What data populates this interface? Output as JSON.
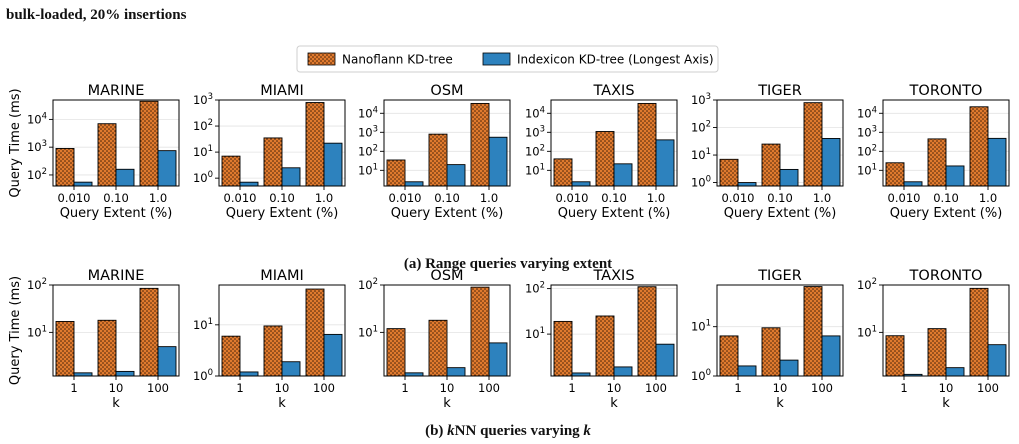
{
  "top_caption": "bulk-loaded, 20% insertions",
  "legend": {
    "series": [
      {
        "name": "Nanoflann KD-tree",
        "color": "#e07a2e",
        "pattern": "dots"
      },
      {
        "name": "Indexicon KD-tree (Longest Axis)",
        "color": "#2d82be",
        "pattern": "solid"
      }
    ]
  },
  "rows": [
    {
      "caption_label": "(a)",
      "caption_text": "Range queries varying extent",
      "ylabel": "Query Time (ms)",
      "xlabel": "Query Extent (%)"
    },
    {
      "caption_label": "(b)",
      "caption_pre": "k",
      "caption_mid": "NN queries varying",
      "caption_post": "k",
      "ylabel": "Query Time (ms)",
      "xlabel": "k"
    }
  ],
  "chart_data": [
    {
      "type": "bar",
      "row": 0,
      "title": "MARINE",
      "categories": [
        "0.010",
        "0.10",
        "1.0"
      ],
      "xlabel": "Query Extent (%)",
      "ylabel": "Query Time (ms)",
      "yscale": "log",
      "ylim": [
        40,
        50000
      ],
      "yticks": [
        {
          "v": 100,
          "e": "2"
        },
        {
          "v": 1000,
          "e": "3"
        },
        {
          "v": 10000,
          "e": "4"
        }
      ],
      "series": [
        {
          "name": "Nanoflann KD-tree",
          "values": [
            900,
            7000,
            45000
          ]
        },
        {
          "name": "Indexicon KD-tree (Longest Axis)",
          "values": [
            55,
            160,
            750
          ]
        }
      ]
    },
    {
      "type": "bar",
      "row": 0,
      "title": "MIAMI",
      "categories": [
        "0.010",
        "0.10",
        "1.0"
      ],
      "xlabel": "Query Extent (%)",
      "ylabel": "",
      "yscale": "log",
      "ylim": [
        0.5,
        1000
      ],
      "yticks": [
        {
          "v": 1,
          "e": "0"
        },
        {
          "v": 10,
          "e": "1"
        },
        {
          "v": 100,
          "e": "2"
        },
        {
          "v": 1000,
          "e": "3"
        }
      ],
      "series": [
        {
          "name": "Nanoflann KD-tree",
          "values": [
            7,
            35,
            800
          ]
        },
        {
          "name": "Indexicon KD-tree (Longest Axis)",
          "values": [
            0.7,
            2.5,
            22
          ]
        }
      ]
    },
    {
      "type": "bar",
      "row": 0,
      "title": "OSM",
      "categories": [
        "0.010",
        "0.10",
        "1.0"
      ],
      "xlabel": "Query Extent (%)",
      "ylabel": "",
      "yscale": "log",
      "ylim": [
        1.5,
        50000
      ],
      "yticks": [
        {
          "v": 10,
          "e": "1"
        },
        {
          "v": 100,
          "e": "2"
        },
        {
          "v": 1000,
          "e": "3"
        },
        {
          "v": 10000,
          "e": "4"
        }
      ],
      "series": [
        {
          "name": "Nanoflann KD-tree",
          "values": [
            35,
            800,
            33000
          ]
        },
        {
          "name": "Indexicon KD-tree (Longest Axis)",
          "values": [
            2.5,
            20,
            550
          ]
        }
      ]
    },
    {
      "type": "bar",
      "row": 0,
      "title": "TAXIS",
      "categories": [
        "0.010",
        "0.10",
        "1.0"
      ],
      "xlabel": "Query Extent (%)",
      "ylabel": "",
      "yscale": "log",
      "ylim": [
        1.5,
        50000
      ],
      "yticks": [
        {
          "v": 10,
          "e": "1"
        },
        {
          "v": 100,
          "e": "2"
        },
        {
          "v": 1000,
          "e": "3"
        },
        {
          "v": 10000,
          "e": "4"
        }
      ],
      "series": [
        {
          "name": "Nanoflann KD-tree",
          "values": [
            40,
            1100,
            33000
          ]
        },
        {
          "name": "Indexicon KD-tree (Longest Axis)",
          "values": [
            2.5,
            22,
            400
          ]
        }
      ]
    },
    {
      "type": "bar",
      "row": 0,
      "title": "TIGER",
      "categories": [
        "0.010",
        "0.10",
        "1.0"
      ],
      "xlabel": "Query Extent (%)",
      "ylabel": "",
      "yscale": "log",
      "ylim": [
        0.75,
        1000
      ],
      "yticks": [
        {
          "v": 1,
          "e": "0"
        },
        {
          "v": 10,
          "e": "1"
        },
        {
          "v": 100,
          "e": "2"
        },
        {
          "v": 1000,
          "e": "3"
        }
      ],
      "series": [
        {
          "name": "Nanoflann KD-tree",
          "values": [
            7,
            25,
            800
          ]
        },
        {
          "name": "Indexicon KD-tree (Longest Axis)",
          "values": [
            1.0,
            3.0,
            40
          ]
        }
      ]
    },
    {
      "type": "bar",
      "row": 0,
      "title": "TORONTO",
      "categories": [
        "0.010",
        "0.10",
        "1.0"
      ],
      "xlabel": "Query Extent (%)",
      "ylabel": "",
      "yscale": "log",
      "ylim": [
        1.5,
        50000
      ],
      "yticks": [
        {
          "v": 10,
          "e": "1"
        },
        {
          "v": 100,
          "e": "2"
        },
        {
          "v": 1000,
          "e": "3"
        },
        {
          "v": 10000,
          "e": "4"
        }
      ],
      "series": [
        {
          "name": "Nanoflann KD-tree",
          "values": [
            25,
            450,
            22000
          ]
        },
        {
          "name": "Indexicon KD-tree (Longest Axis)",
          "values": [
            2.5,
            17,
            480
          ]
        }
      ]
    },
    {
      "type": "bar",
      "row": 1,
      "title": "MARINE",
      "categories": [
        "1",
        "10",
        "100"
      ],
      "xlabel": "k",
      "ylabel": "Query Time (ms)",
      "yscale": "log",
      "ylim": [
        1.2,
        100
      ],
      "yticks": [
        {
          "v": 10,
          "e": "1"
        },
        {
          "v": 100,
          "e": "2"
        }
      ],
      "series": [
        {
          "name": "Nanoflann KD-tree",
          "values": [
            17,
            18,
            85
          ]
        },
        {
          "name": "Indexicon KD-tree (Longest Axis)",
          "values": [
            1.4,
            1.5,
            5
          ]
        }
      ]
    },
    {
      "type": "bar",
      "row": 1,
      "title": "MIAMI",
      "categories": [
        "1",
        "10",
        "100"
      ],
      "xlabel": "k",
      "ylabel": "",
      "yscale": "log",
      "ylim": [
        1,
        60
      ],
      "yticks": [
        {
          "v": 1,
          "e": "0"
        },
        {
          "v": 10,
          "e": "1"
        }
      ],
      "series": [
        {
          "name": "Nanoflann KD-tree",
          "values": [
            6,
            9.5,
            50
          ]
        },
        {
          "name": "Indexicon KD-tree (Longest Axis)",
          "values": [
            1.2,
            1.9,
            6.5
          ]
        }
      ]
    },
    {
      "type": "bar",
      "row": 1,
      "title": "OSM",
      "categories": [
        "1",
        "10",
        "100"
      ],
      "xlabel": "k",
      "ylabel": "",
      "yscale": "log",
      "ylim": [
        1.2,
        100
      ],
      "yticks": [
        {
          "v": 10,
          "e": "1"
        },
        {
          "v": 100,
          "e": "2"
        }
      ],
      "series": [
        {
          "name": "Nanoflann KD-tree",
          "values": [
            12,
            18,
            90
          ]
        },
        {
          "name": "Indexicon KD-tree (Longest Axis)",
          "values": [
            1.4,
            1.8,
            6
          ]
        }
      ]
    },
    {
      "type": "bar",
      "row": 1,
      "title": "TAXIS",
      "categories": [
        "1",
        "10",
        "100"
      ],
      "xlabel": "k",
      "ylabel": "",
      "yscale": "log",
      "ylim": [
        1.2,
        120
      ],
      "yticks": [
        {
          "v": 10,
          "e": "1"
        },
        {
          "v": 100,
          "e": "2"
        }
      ],
      "series": [
        {
          "name": "Nanoflann KD-tree",
          "values": [
            19,
            25,
            110
          ]
        },
        {
          "name": "Indexicon KD-tree (Longest Axis)",
          "values": [
            1.4,
            1.9,
            6
          ]
        }
      ]
    },
    {
      "type": "bar",
      "row": 1,
      "title": "TIGER",
      "categories": [
        "1",
        "10",
        "100"
      ],
      "xlabel": "k",
      "ylabel": "",
      "yscale": "log",
      "ylim": [
        1,
        70
      ],
      "yticks": [
        {
          "v": 1,
          "e": "0"
        },
        {
          "v": 10,
          "e": "1"
        }
      ],
      "series": [
        {
          "name": "Nanoflann KD-tree",
          "values": [
            6.5,
            9.5,
            65
          ]
        },
        {
          "name": "Indexicon KD-tree (Longest Axis)",
          "values": [
            1.6,
            2.1,
            6.5
          ]
        }
      ]
    },
    {
      "type": "bar",
      "row": 1,
      "title": "TORONTO",
      "categories": [
        "1",
        "10",
        "100"
      ],
      "xlabel": "k",
      "ylabel": "",
      "yscale": "log",
      "ylim": [
        1.2,
        100
      ],
      "yticks": [
        {
          "v": 10,
          "e": "1"
        },
        {
          "v": 100,
          "e": "2"
        }
      ],
      "series": [
        {
          "name": "Nanoflann KD-tree",
          "values": [
            8.5,
            12,
            85
          ]
        },
        {
          "name": "Indexicon KD-tree (Longest Axis)",
          "values": [
            1.3,
            1.8,
            5.5
          ]
        }
      ]
    }
  ]
}
